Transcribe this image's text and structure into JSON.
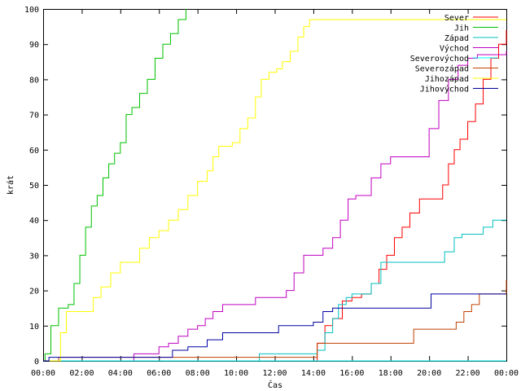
{
  "chart_data": {
    "type": "line",
    "title": "",
    "xlabel": "Čas",
    "ylabel": "krát",
    "xlim": [
      0,
      24
    ],
    "ylim": [
      0,
      100
    ],
    "x_ticks": [
      {
        "value": 0,
        "label": "00:00"
      },
      {
        "value": 2,
        "label": "02:00"
      },
      {
        "value": 4,
        "label": "04:00"
      },
      {
        "value": 6,
        "label": "06:00"
      },
      {
        "value": 8,
        "label": "08:00"
      },
      {
        "value": 10,
        "label": "10:00"
      },
      {
        "value": 12,
        "label": "12:00"
      },
      {
        "value": 14,
        "label": "14:00"
      },
      {
        "value": 16,
        "label": "16:00"
      },
      {
        "value": 18,
        "label": "18:00"
      },
      {
        "value": 20,
        "label": "20:00"
      },
      {
        "value": 22,
        "label": "22:00"
      },
      {
        "value": 24,
        "label": "00:00"
      }
    ],
    "y_ticks": [
      0,
      10,
      20,
      30,
      40,
      50,
      60,
      70,
      80,
      90,
      100
    ],
    "grid": false,
    "legend_position": "top-right",
    "step": true,
    "series": [
      {
        "name": "Sever",
        "color": "#ff0000",
        "points": [
          [
            0,
            0
          ],
          [
            13.9,
            0
          ],
          [
            14.2,
            5
          ],
          [
            14.6,
            10
          ],
          [
            15.0,
            12
          ],
          [
            15.5,
            17
          ],
          [
            16.0,
            18
          ],
          [
            16.5,
            19
          ],
          [
            17.0,
            22
          ],
          [
            17.4,
            26
          ],
          [
            17.8,
            30
          ],
          [
            18.2,
            35
          ],
          [
            18.6,
            38
          ],
          [
            19.0,
            42
          ],
          [
            19.5,
            46
          ],
          [
            20.0,
            46
          ],
          [
            20.4,
            46
          ],
          [
            20.7,
            50
          ],
          [
            21.0,
            56
          ],
          [
            21.3,
            60
          ],
          [
            21.6,
            63
          ],
          [
            22.0,
            68
          ],
          [
            22.4,
            73
          ],
          [
            22.8,
            80
          ],
          [
            23.2,
            86
          ],
          [
            23.6,
            90
          ],
          [
            24,
            94
          ]
        ]
      },
      {
        "name": "Jih",
        "color": "#00c000",
        "points": [
          [
            0,
            0
          ],
          [
            0.1,
            2
          ],
          [
            0.4,
            10
          ],
          [
            0.8,
            15
          ],
          [
            1.0,
            15
          ],
          [
            1.3,
            16
          ],
          [
            1.6,
            22
          ],
          [
            1.9,
            30
          ],
          [
            2.2,
            38
          ],
          [
            2.5,
            44
          ],
          [
            2.8,
            47
          ],
          [
            3.1,
            52
          ],
          [
            3.4,
            56
          ],
          [
            3.7,
            59
          ],
          [
            4.0,
            62
          ],
          [
            4.3,
            70
          ],
          [
            4.6,
            72
          ],
          [
            5.0,
            76
          ],
          [
            5.4,
            80
          ],
          [
            5.8,
            86
          ],
          [
            6.2,
            90
          ],
          [
            6.6,
            93
          ],
          [
            7.0,
            97
          ],
          [
            7.4,
            100
          ]
        ]
      },
      {
        "name": "Západ",
        "color": "#00c0c0",
        "points": [
          [
            0,
            0
          ],
          [
            11.1,
            0
          ],
          [
            11.2,
            2
          ],
          [
            13.9,
            2
          ],
          [
            14.2,
            3
          ],
          [
            14.6,
            8
          ],
          [
            15.0,
            12
          ],
          [
            15.3,
            16
          ],
          [
            15.7,
            18
          ],
          [
            16.0,
            19
          ],
          [
            16.6,
            19
          ],
          [
            17.0,
            22
          ],
          [
            17.5,
            28
          ],
          [
            18.0,
            28
          ],
          [
            20.3,
            28
          ],
          [
            20.8,
            31
          ],
          [
            21.3,
            35
          ],
          [
            21.7,
            36
          ],
          [
            22.5,
            36
          ],
          [
            22.8,
            38
          ],
          [
            23.3,
            40
          ],
          [
            24,
            40
          ]
        ]
      },
      {
        "name": "Východ",
        "color": "#c000c0",
        "points": [
          [
            0,
            0
          ],
          [
            4.6,
            0
          ],
          [
            4.7,
            2
          ],
          [
            5.8,
            2
          ],
          [
            6.0,
            4
          ],
          [
            6.5,
            5
          ],
          [
            7.0,
            7
          ],
          [
            7.5,
            9
          ],
          [
            8.0,
            10
          ],
          [
            8.4,
            12
          ],
          [
            8.8,
            14
          ],
          [
            9.3,
            16
          ],
          [
            10.0,
            16
          ],
          [
            11.0,
            18
          ],
          [
            12.0,
            18
          ],
          [
            12.6,
            20
          ],
          [
            13.0,
            25
          ],
          [
            13.5,
            30
          ],
          [
            14.0,
            30
          ],
          [
            14.5,
            32
          ],
          [
            15.0,
            35
          ],
          [
            15.4,
            40
          ],
          [
            15.8,
            46
          ],
          [
            16.2,
            47
          ],
          [
            16.6,
            47
          ],
          [
            17.0,
            52
          ],
          [
            17.5,
            56
          ],
          [
            18.0,
            58
          ],
          [
            19.5,
            58
          ],
          [
            20.0,
            66
          ],
          [
            20.5,
            74
          ],
          [
            21.0,
            80
          ],
          [
            21.5,
            84
          ],
          [
            22.0,
            86
          ],
          [
            22.5,
            87
          ],
          [
            24,
            88
          ]
        ]
      },
      {
        "name": "Severovýchod",
        "color": "#00ffff",
        "points": [
          [
            0,
            0
          ],
          [
            24,
            0
          ]
        ]
      },
      {
        "name": "Severozápad",
        "color": "#c04000",
        "points": [
          [
            0,
            0
          ],
          [
            0.8,
            1
          ],
          [
            14.0,
            1
          ],
          [
            14.2,
            5
          ],
          [
            18.8,
            5
          ],
          [
            19.2,
            9
          ],
          [
            21.0,
            9
          ],
          [
            21.4,
            11
          ],
          [
            21.8,
            14
          ],
          [
            22.2,
            16
          ],
          [
            22.6,
            19
          ],
          [
            23.8,
            19
          ],
          [
            24,
            23
          ]
        ]
      },
      {
        "name": "Jihozápad",
        "color": "#ffff00",
        "points": [
          [
            0,
            0
          ],
          [
            0.6,
            0
          ],
          [
            0.9,
            8
          ],
          [
            1.2,
            14
          ],
          [
            2.3,
            14
          ],
          [
            2.6,
            18
          ],
          [
            3.0,
            21
          ],
          [
            3.5,
            25
          ],
          [
            4.0,
            28
          ],
          [
            4.5,
            28
          ],
          [
            5.0,
            32
          ],
          [
            5.5,
            35
          ],
          [
            6.0,
            37
          ],
          [
            6.5,
            40
          ],
          [
            7.0,
            43
          ],
          [
            7.5,
            47
          ],
          [
            8.0,
            51
          ],
          [
            8.5,
            54
          ],
          [
            8.8,
            58
          ],
          [
            9.1,
            61
          ],
          [
            9.8,
            62
          ],
          [
            10.2,
            66
          ],
          [
            10.6,
            69
          ],
          [
            11.0,
            75
          ],
          [
            11.3,
            80
          ],
          [
            11.7,
            82
          ],
          [
            12.1,
            83
          ],
          [
            12.4,
            85
          ],
          [
            12.8,
            88
          ],
          [
            13.2,
            92
          ],
          [
            13.5,
            95
          ],
          [
            13.8,
            97
          ],
          [
            24,
            97
          ]
        ]
      },
      {
        "name": "Jihovýchod",
        "color": "#0000a0",
        "points": [
          [
            0,
            0
          ],
          [
            0.3,
            1
          ],
          [
            6.2,
            1
          ],
          [
            6.7,
            3
          ],
          [
            7.5,
            4
          ],
          [
            8.5,
            6
          ],
          [
            9.3,
            8
          ],
          [
            11.5,
            8
          ],
          [
            12.2,
            10
          ],
          [
            13.0,
            10
          ],
          [
            14.0,
            11
          ],
          [
            14.5,
            14
          ],
          [
            15.0,
            15
          ],
          [
            19.0,
            15
          ],
          [
            19.5,
            15
          ],
          [
            20.1,
            19
          ],
          [
            24,
            19
          ]
        ]
      }
    ]
  }
}
